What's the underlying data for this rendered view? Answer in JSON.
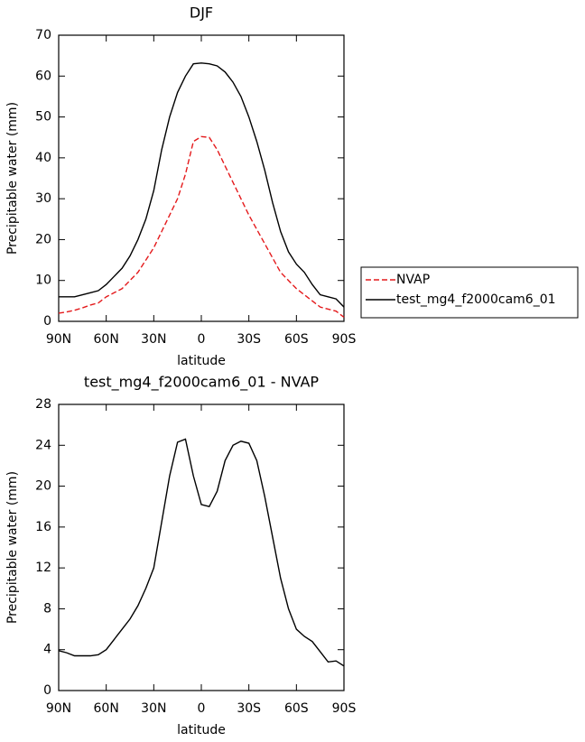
{
  "chart_data": [
    {
      "type": "line",
      "title": "DJF",
      "xlabel": "latitude",
      "ylabel": "Precipitable water (mm)",
      "x": [
        90,
        85,
        80,
        75,
        70,
        65,
        60,
        55,
        50,
        45,
        40,
        35,
        30,
        25,
        20,
        15,
        10,
        5,
        0,
        -5,
        -10,
        -15,
        -20,
        -25,
        -30,
        -35,
        -40,
        -45,
        -50,
        -55,
        -60,
        -65,
        -70,
        -75,
        -80,
        -85,
        -90
      ],
      "xlim": [
        90,
        -90
      ],
      "xticks": [
        {
          "value": 90,
          "label": "90N"
        },
        {
          "value": 60,
          "label": "60N"
        },
        {
          "value": 30,
          "label": "30N"
        },
        0,
        {
          "value": -30,
          "label": "30S"
        },
        {
          "value": -60,
          "label": "60S"
        },
        {
          "value": -90,
          "label": "90S"
        }
      ],
      "ylim": [
        0,
        70
      ],
      "yticks": [
        0,
        10,
        20,
        30,
        40,
        50,
        60,
        70
      ],
      "legend": "right",
      "series": [
        {
          "name": "NVAP",
          "color": "#e41a1c",
          "linestyle": "dashed",
          "values": [
            2,
            2.3,
            2.7,
            3.3,
            4,
            4.5,
            6,
            7,
            8,
            10,
            12,
            15,
            18,
            22,
            26,
            30,
            36,
            44,
            45.2,
            45,
            42,
            38,
            34,
            30,
            26,
            22.5,
            19,
            15.5,
            12,
            10,
            8,
            6.5,
            5,
            3.5,
            3,
            2.5,
            1
          ]
        },
        {
          "name": "test_mg4_f2000cam6_01",
          "color": "#000000",
          "linestyle": "solid",
          "values": [
            6,
            6,
            6,
            6.5,
            7,
            7.5,
            9,
            11,
            13,
            16,
            20,
            25,
            32,
            42,
            50,
            56,
            60,
            63,
            63.2,
            63,
            62.5,
            61,
            58.5,
            55,
            50,
            44,
            37,
            29,
            22,
            17,
            14,
            12,
            9,
            6.5,
            6,
            5.5,
            3.5
          ]
        }
      ]
    },
    {
      "type": "line",
      "title": "test_mg4_f2000cam6_01 - NVAP",
      "xlabel": "latitude",
      "ylabel": "Precipitable water (mm)",
      "x": [
        90,
        85,
        80,
        75,
        70,
        65,
        60,
        55,
        50,
        45,
        40,
        35,
        30,
        25,
        20,
        15,
        10,
        5,
        0,
        -5,
        -10,
        -15,
        -20,
        -25,
        -30,
        -35,
        -40,
        -45,
        -50,
        -55,
        -60,
        -65,
        -70,
        -75,
        -80,
        -85,
        -90
      ],
      "xlim": [
        90,
        -90
      ],
      "xticks": [
        {
          "value": 90,
          "label": "90N"
        },
        {
          "value": 60,
          "label": "60N"
        },
        {
          "value": 30,
          "label": "30N"
        },
        0,
        {
          "value": -30,
          "label": "30S"
        },
        {
          "value": -60,
          "label": "60S"
        },
        {
          "value": -90,
          "label": "90S"
        }
      ],
      "ylim": [
        0,
        28
      ],
      "yticks": [
        0,
        4,
        8,
        12,
        16,
        20,
        24,
        28
      ],
      "series": [
        {
          "color": "#000000",
          "linestyle": "solid",
          "values": [
            3.9,
            3.7,
            3.4,
            3.4,
            3.4,
            3.5,
            4,
            5,
            6,
            7,
            8.3,
            10,
            12,
            16.5,
            21,
            24.3,
            24.6,
            21,
            18.2,
            18,
            19.5,
            22.5,
            24,
            24.4,
            24.2,
            22.5,
            19,
            15,
            11,
            8,
            6,
            5.3,
            4.8,
            3.8,
            2.8,
            2.9,
            2.4
          ]
        }
      ]
    }
  ]
}
